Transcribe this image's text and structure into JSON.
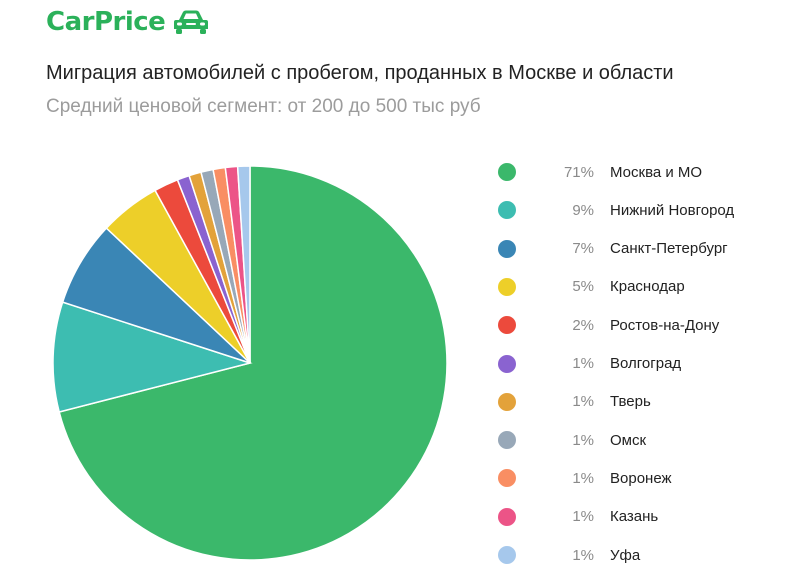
{
  "brand": {
    "name": "CarPrice",
    "icon": "car-icon",
    "color": "#2bb15a"
  },
  "chart_data": {
    "type": "pie",
    "title": "Миграция автомобилей с пробегом, проданных в Москве и области",
    "subtitle": "Средний ценовой сегмент: от 200 до 500 тыс руб",
    "legend_position": "right",
    "slices": [
      {
        "label": "Москва и МО",
        "value": 71,
        "display": "71%",
        "color": "#3bb86b"
      },
      {
        "label": "Нижний Новгород",
        "value": 9,
        "display": "9%",
        "color": "#3dbdb1"
      },
      {
        "label": "Санкт-Петербург",
        "value": 7,
        "display": "7%",
        "color": "#3a86b5"
      },
      {
        "label": "Краснодар",
        "value": 5,
        "display": "5%",
        "color": "#edcf29"
      },
      {
        "label": "Ростов-на-Дону",
        "value": 2,
        "display": "2%",
        "color": "#ec4a3c"
      },
      {
        "label": "Волгоград",
        "value": 1,
        "display": "1%",
        "color": "#8a63d0"
      },
      {
        "label": "Тверь",
        "value": 1,
        "display": "1%",
        "color": "#e3a23a"
      },
      {
        "label": "Омск",
        "value": 1,
        "display": "1%",
        "color": "#98a8b8"
      },
      {
        "label": "Воронеж",
        "value": 1,
        "display": "1%",
        "color": "#f98e63"
      },
      {
        "label": "Казань",
        "value": 1,
        "display": "1%",
        "color": "#ec5487"
      },
      {
        "label": "Уфа",
        "value": 1,
        "display": "1%",
        "color": "#a6c8ec"
      }
    ]
  }
}
